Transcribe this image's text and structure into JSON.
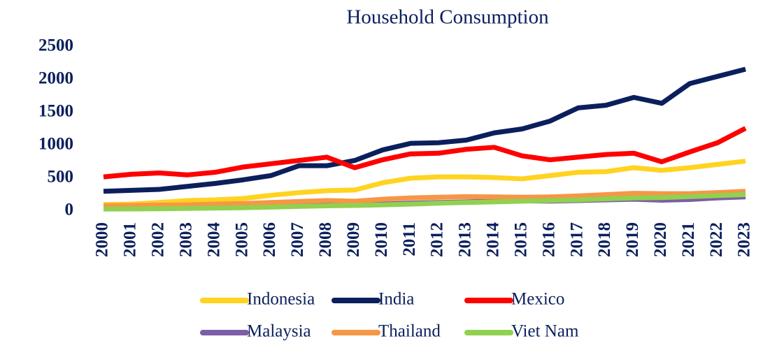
{
  "chart_data": {
    "type": "line",
    "title": "Household Consumption",
    "categories": [
      "2000",
      "2001",
      "2002",
      "2003",
      "2004",
      "2005",
      "2006",
      "2007",
      "2008",
      "2009",
      "2010",
      "2011",
      "2012",
      "2013",
      "2014",
      "2015",
      "2016",
      "2017",
      "2018",
      "2019",
      "2020",
      "2021",
      "2022",
      "2023"
    ],
    "ylim": [
      0,
      2500
    ],
    "yticks": [
      0,
      500,
      1000,
      1500,
      2000,
      2500
    ],
    "grid": false,
    "series": [
      {
        "name": "Indonesia",
        "color": "#ffd320",
        "values": [
          100,
          105,
          130,
          160,
          170,
          190,
          240,
          280,
          310,
          320,
          430,
          500,
          520,
          520,
          510,
          490,
          540,
          590,
          600,
          660,
          620,
          660,
          710,
          760
        ]
      },
      {
        "name": "India",
        "color": "#0b1f5c",
        "values": [
          300,
          315,
          330,
          375,
          420,
          475,
          540,
          690,
          690,
          770,
          930,
          1030,
          1040,
          1080,
          1190,
          1250,
          1370,
          1570,
          1610,
          1730,
          1640,
          1940,
          2050,
          2160
        ]
      },
      {
        "name": "Mexico",
        "color": "#ff0000",
        "values": [
          520,
          560,
          580,
          550,
          590,
          670,
          720,
          770,
          820,
          660,
          780,
          870,
          880,
          940,
          970,
          840,
          780,
          820,
          860,
          880,
          750,
          900,
          1040,
          1260
        ]
      },
      {
        "name": "Malaysia",
        "color": "#7b5ea7",
        "values": [
          50,
          52,
          55,
          60,
          65,
          70,
          78,
          88,
          95,
          90,
          105,
          120,
          130,
          140,
          150,
          155,
          150,
          160,
          170,
          180,
          165,
          175,
          200,
          215
        ]
      },
      {
        "name": "Thailand",
        "color": "#f79646",
        "values": [
          80,
          85,
          90,
          95,
          105,
          115,
          130,
          145,
          160,
          150,
          180,
          200,
          210,
          220,
          215,
          210,
          215,
          230,
          250,
          270,
          265,
          265,
          280,
          300
        ]
      },
      {
        "name": "Viet Nam",
        "color": "#92d050",
        "values": [
          30,
          32,
          35,
          40,
          45,
          50,
          60,
          70,
          80,
          85,
          95,
          105,
          120,
          130,
          140,
          150,
          160,
          170,
          185,
          200,
          205,
          220,
          235,
          250
        ]
      }
    ]
  }
}
